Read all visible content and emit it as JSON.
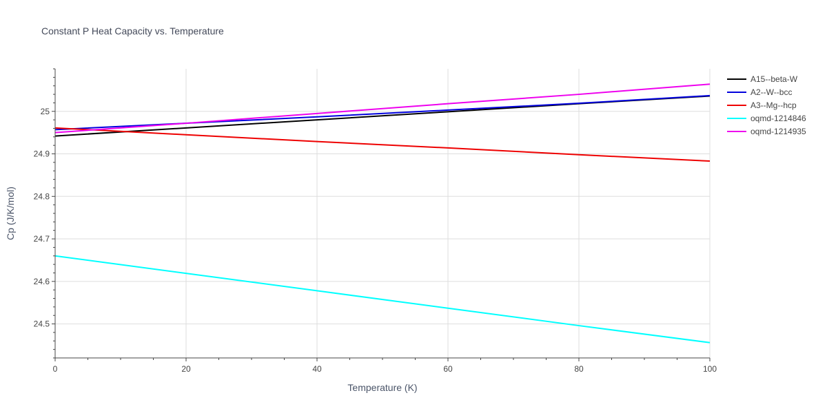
{
  "chart_data": {
    "type": "line",
    "title": "Constant P Heat Capacity vs. Temperature",
    "xlabel": "Temperature (K)",
    "ylabel": "Cp (J/K/mol)",
    "xlim": [
      0,
      100
    ],
    "ylim": [
      24.42,
      25.1
    ],
    "xticks": [
      0,
      20,
      40,
      60,
      80,
      100
    ],
    "yticks": [
      24.5,
      24.6,
      24.7,
      24.8,
      24.9,
      25
    ],
    "ytick_labels": [
      "24.5",
      "24.6",
      "24.7",
      "24.8",
      "24.9",
      "25"
    ],
    "grid": true,
    "legend_position": "top-right",
    "series": [
      {
        "name": "A15--beta-W",
        "color": "#000000",
        "x": [
          0,
          20,
          40,
          60,
          80,
          100
        ],
        "values": [
          24.942,
          24.961,
          24.98,
          24.999,
          25.018,
          25.036
        ]
      },
      {
        "name": "A2--W--bcc",
        "color": "#0000dd",
        "x": [
          0,
          20,
          40,
          60,
          80,
          100
        ],
        "values": [
          24.957,
          24.972,
          24.987,
          25.003,
          25.019,
          25.037
        ]
      },
      {
        "name": "A3--Mg--hcp",
        "color": "#ee0000",
        "x": [
          0,
          20,
          40,
          60,
          80,
          100
        ],
        "values": [
          24.961,
          24.945,
          24.929,
          24.914,
          24.898,
          24.883
        ]
      },
      {
        "name": "oqmd-1214846",
        "color": "#00ffff",
        "x": [
          0,
          20,
          40,
          60,
          80,
          100
        ],
        "values": [
          24.66,
          24.619,
          24.578,
          24.537,
          24.496,
          24.456
        ]
      },
      {
        "name": "oqmd-1214935",
        "color": "#ee00ee",
        "x": [
          0,
          20,
          40,
          60,
          80,
          100
        ],
        "values": [
          24.95,
          24.972,
          24.995,
          25.018,
          25.04,
          25.064
        ]
      }
    ]
  }
}
